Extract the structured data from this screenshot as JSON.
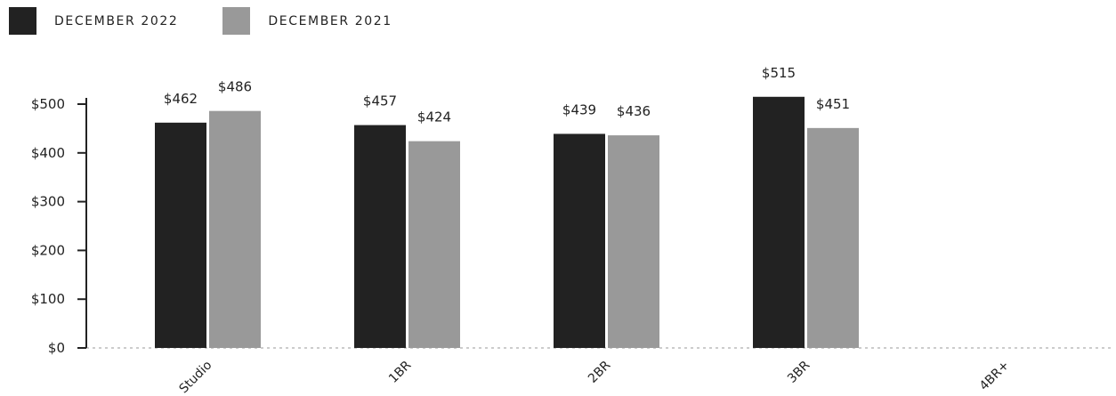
{
  "chart_data": {
    "type": "bar",
    "categories": [
      "Studio",
      "1BR",
      "2BR",
      "3BR",
      "4BR+"
    ],
    "series": [
      {
        "name": "DECEMBER 2022",
        "color": "#222222",
        "values": [
          462,
          457,
          439,
          515,
          null
        ]
      },
      {
        "name": "DECEMBER 2021",
        "color": "#999999",
        "values": [
          486,
          424,
          436,
          451,
          null
        ]
      }
    ],
    "value_labels": [
      [
        "$462",
        "$457",
        "$439",
        "$515",
        ""
      ],
      [
        "$486",
        "$424",
        "$436",
        "$451",
        ""
      ]
    ],
    "yticks": [
      0,
      100,
      200,
      300,
      400,
      500
    ],
    "ytick_labels": [
      "$0",
      "$100",
      "$200",
      "$300",
      "$400",
      "$500"
    ],
    "ylim": [
      0,
      500
    ],
    "legend_position": "top-left",
    "grid": false
  }
}
